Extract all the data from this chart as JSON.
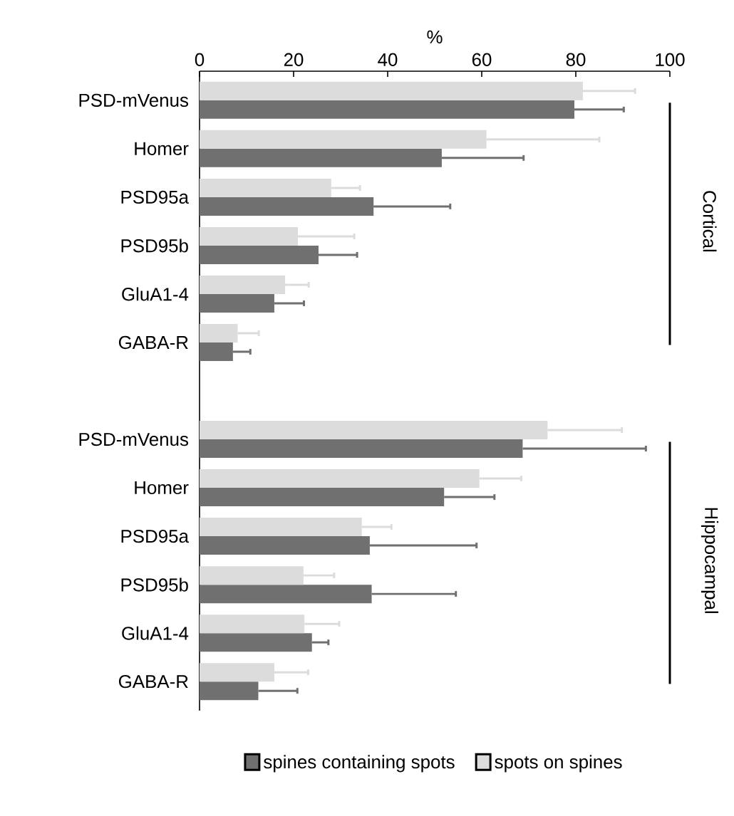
{
  "chart_data": {
    "type": "bar",
    "orientation": "horizontal",
    "xlabel": "%",
    "categories": [
      "PSD-mVenus",
      "Homer",
      "PSD95a",
      "PSD95b",
      "GluA1-4",
      "GABA-R",
      null,
      "PSD-mVenus",
      "Homer",
      "PSD95a",
      "PSD95b",
      "GluA1-4",
      "GABA-R"
    ],
    "series": [
      {
        "name": "spines containing spots",
        "color": "#707070",
        "values": [
          79.7,
          51.5,
          37,
          25.3,
          15.9,
          7.1,
          null,
          68.7,
          52,
          36.2,
          36.6,
          23.9,
          12.5
        ],
        "errors": [
          [
            79.7,
            90.2
          ],
          [
            51.5,
            68.9
          ],
          [
            37,
            53.3
          ],
          [
            25.3,
            33.5
          ],
          [
            15.9,
            22.2
          ],
          [
            7.1,
            10.8
          ],
          null,
          [
            68.7,
            94.9
          ],
          [
            52,
            62.7
          ],
          [
            36.2,
            58.9
          ],
          [
            36.6,
            54.5
          ],
          [
            23.9,
            27.4
          ],
          [
            12.5,
            20.8
          ]
        ]
      },
      {
        "name": "spots on spines",
        "color": "#dcdcdc",
        "values": [
          81.5,
          61,
          28,
          20.9,
          18.2,
          8.1,
          null,
          74,
          59.5,
          34.5,
          22.1,
          22.3,
          15.9
        ],
        "errors": [
          [
            81.5,
            92.6
          ],
          [
            61,
            85
          ],
          [
            28,
            34.1
          ],
          [
            20.9,
            32.9
          ],
          [
            18.2,
            23.2
          ],
          [
            8.1,
            12.6
          ],
          null,
          [
            74,
            89.8
          ],
          [
            59.5,
            68.4
          ],
          [
            34.5,
            40.8
          ],
          [
            22.1,
            28.6
          ],
          [
            22.3,
            29.7
          ],
          [
            15.9,
            23.1
          ]
        ]
      }
    ],
    "xlim": [
      0,
      100
    ],
    "xticks": [
      0,
      20,
      40,
      60,
      80,
      100
    ],
    "annotations": [
      "Cortical",
      "Hippocampal"
    ],
    "legend": "bottom"
  }
}
